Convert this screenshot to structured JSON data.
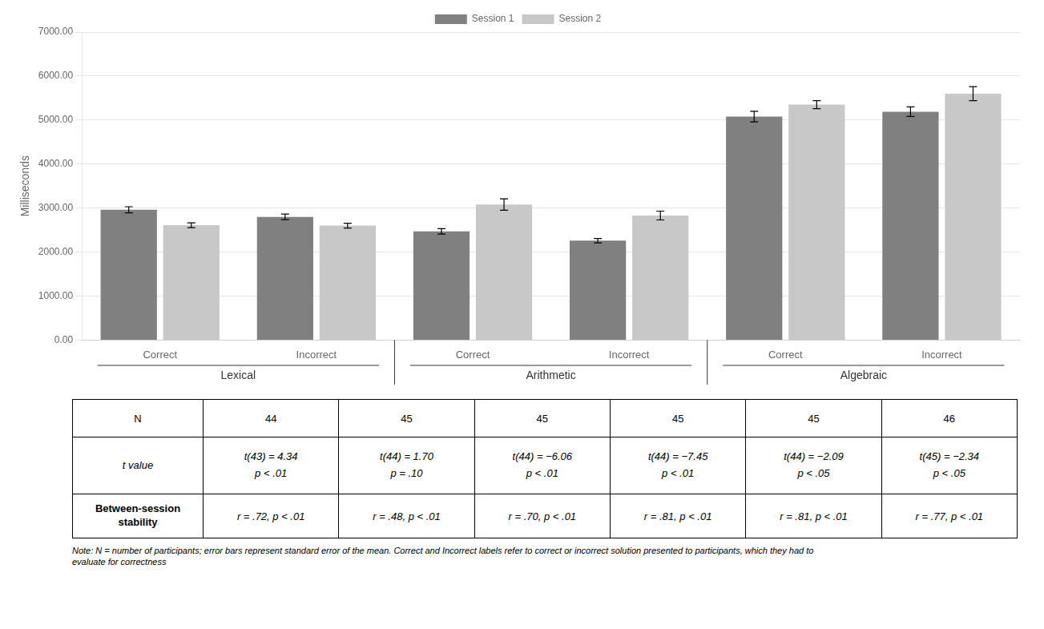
{
  "chart_data": {
    "type": "bar",
    "categories": [
      "Correct",
      "Incorrect",
      "Correct",
      "Incorrect",
      "Correct",
      "Incorrect"
    ],
    "group_labels": [
      "Lexical",
      "Arithmetic",
      "Algebraic"
    ],
    "series": [
      {
        "name": "Session 1",
        "color": "#808080",
        "values": [
          2960,
          2800,
          2470,
          2260,
          5080,
          5190
        ],
        "errors": [
          70,
          65,
          60,
          50,
          120,
          110
        ]
      },
      {
        "name": "Session 2",
        "color": "#c8c8c8",
        "values": [
          2610,
          2600,
          3080,
          2830,
          5350,
          5600
        ],
        "errors": [
          55,
          55,
          130,
          100,
          90,
          160
        ]
      }
    ],
    "y_label": "Milliseconds",
    "ylim": [
      0,
      7000
    ],
    "yticks": [
      {
        "value": 0,
        "label": "0.00"
      },
      {
        "value": 1000,
        "label": "1000.00"
      },
      {
        "value": 2000,
        "label": "2000.00"
      },
      {
        "value": 3000,
        "label": "3000.00"
      },
      {
        "value": 4000,
        "label": "4000.00"
      },
      {
        "value": 5000,
        "label": "5000.00"
      },
      {
        "value": 6000,
        "label": "6000.00"
      },
      {
        "value": 7000,
        "label": "7000.00"
      }
    ],
    "grid": true,
    "legend": "top",
    "table": [
      {
        "label": "N",
        "cells": [
          "44",
          "45",
          "45",
          "45",
          "45",
          "46"
        ]
      },
      {
        "label": "t value",
        "cells": [
          "t(43) = 4.34\np < .01",
          "t(44) = 1.70\np = .10",
          "t(44) = −6.06\np < .01",
          "t(44) = −7.45\np < .01",
          "t(44) = −2.09\np < .05",
          "t(45) = −2.34\np < .05"
        ]
      },
      {
        "label": "Between-session\nstability",
        "cells": [
          "r = .72, p < .01",
          "r = .48, p < .01",
          "r = .70, p < .01",
          "r = .81, p < .01",
          "r = .81, p < .01",
          "r = .77, p < .01"
        ]
      }
    ],
    "note": "Note: N = number of participants; error bars represent standard error of the mean. Correct and Incorrect labels refer to correct or incorrect solution presented to participants, which they had to\nevaluate for correctness"
  }
}
